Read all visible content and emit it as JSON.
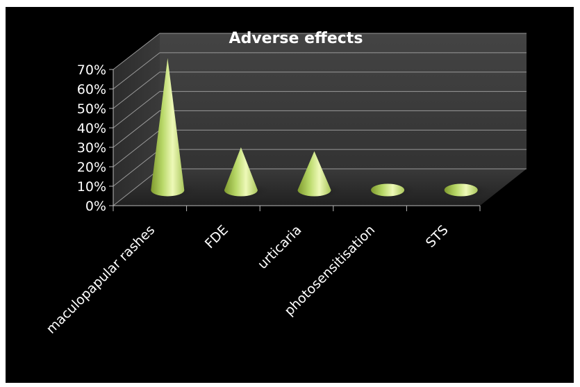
{
  "chart_data": {
    "type": "bar",
    "subtype": "3d-cone",
    "title": "Adverse effects",
    "xlabel": "",
    "ylabel": "",
    "categories": [
      "maculopapular rashes",
      "FDE",
      "urticaria",
      "photosensitisation",
      "STS"
    ],
    "values": [
      0.68,
      0.22,
      0.2,
      0.0,
      0.0
    ],
    "ylim": [
      0,
      0.7
    ],
    "yticks": [
      "0%",
      "10%",
      "20%",
      "30%",
      "40%",
      "50%",
      "60%",
      "70%"
    ],
    "grid": true,
    "legend": "none",
    "colors": {
      "background": "#000000",
      "walls": "#3a3a3a",
      "floor": "#2a2a2a",
      "grid": "#9a9a9a",
      "cone_light": "#e6f7a0",
      "cone_mid": "#b8d868",
      "cone_dark": "#7f9a2e",
      "text": "#ffffff"
    }
  }
}
